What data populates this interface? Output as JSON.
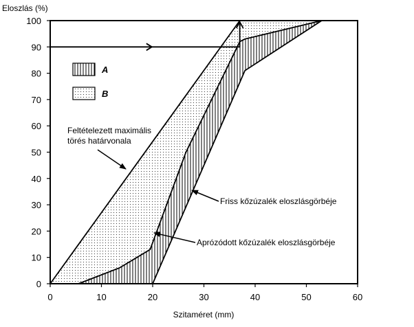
{
  "chart_data": {
    "type": "area",
    "ylabel": "Eloszlás (%)",
    "xlabel": "Szitaméret (mm)",
    "xlim": [
      0,
      60
    ],
    "ylim": [
      0,
      100
    ],
    "xticks": [
      "0",
      "10",
      "20",
      "30",
      "40",
      "50",
      "60"
    ],
    "yticks": [
      "0",
      "10",
      "20",
      "30",
      "40",
      "50",
      "60",
      "70",
      "80",
      "90",
      "100"
    ],
    "grid": false,
    "series": [
      {
        "label": "Feltételezett maximális törés határvonala",
        "x": [
          0,
          37
        ],
        "y": [
          0,
          100
        ]
      },
      {
        "label": "Aprózódott kőzúzalék eloszlásgörbéje",
        "x": [
          5.5,
          13.5,
          19.5,
          26.5,
          37,
          38,
          53
        ],
        "y": [
          0,
          6,
          13,
          50,
          92,
          93,
          100
        ]
      },
      {
        "label": "Friss kőzúzalék eloszlásgörbéje",
        "x": [
          20,
          38,
          53
        ],
        "y": [
          0,
          81,
          100
        ]
      }
    ],
    "reference_arrow": {
      "y": 90,
      "x_from": 0,
      "x_to": 37
    },
    "legend": {
      "position": "top-left",
      "items": [
        {
          "key": "A",
          "pattern": "vertical-hatch"
        },
        {
          "key": "B",
          "pattern": "dots"
        }
      ]
    },
    "annotations": [
      {
        "lines": [
          "Feltételezett maximális",
          "törés határvonala"
        ]
      },
      {
        "text": "Friss kőzúzalék eloszlásgörbéje"
      },
      {
        "text": "Aprózódott kőzúzalék eloszlásgörbéje"
      }
    ]
  }
}
